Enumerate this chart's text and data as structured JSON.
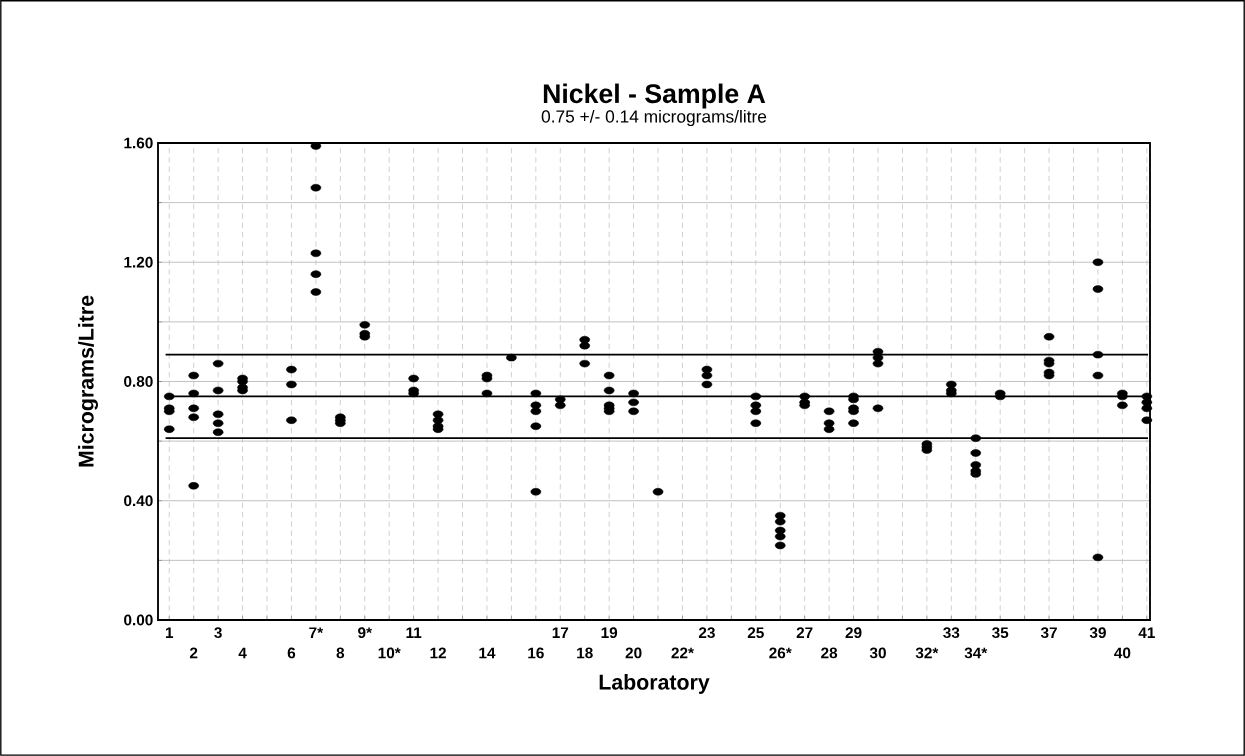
{
  "chart_data": {
    "type": "scatter",
    "title": "Nickel - Sample A",
    "subtitle": "0.75 +/- 0.14 micrograms/litre",
    "xlabel": "Laboratory",
    "ylabel": "Micrograms/Litre",
    "categories": [
      "1",
      "2",
      "3",
      "4",
      null,
      "6",
      "7*",
      "8",
      "9*",
      "10*",
      "11",
      "12",
      null,
      "14",
      null,
      "16",
      "17",
      "18",
      "19",
      "20",
      null,
      "22*",
      "23",
      null,
      "25",
      "26*",
      "27",
      "28",
      "29",
      "30",
      null,
      "32*",
      "33",
      "34*",
      "35",
      null,
      "37",
      null,
      "39",
      "40",
      "41"
    ],
    "series": [
      {
        "color": "#000000",
        "values": [
          0.75,
          0.82,
          0.86,
          0.81,
          null,
          0.84,
          1.59,
          0.68,
          0.99,
          null,
          0.81,
          0.69,
          null,
          0.82,
          0.88,
          0.76,
          0.74,
          0.94,
          0.82,
          0.76,
          0.43,
          null,
          0.84,
          null,
          0.75,
          0.35,
          0.75,
          0.7,
          0.75,
          0.9,
          null,
          0.59,
          0.79,
          0.61,
          0.76,
          null,
          0.95,
          null,
          1.2,
          0.76,
          0.75
        ]
      },
      {
        "color": "#000000",
        "values": [
          0.71,
          0.76,
          0.77,
          0.8,
          null,
          null,
          1.45,
          0.67,
          0.96,
          null,
          0.77,
          0.67,
          null,
          0.81,
          null,
          0.72,
          0.72,
          0.92,
          0.77,
          0.73,
          null,
          null,
          0.82,
          null,
          0.72,
          0.33,
          0.73,
          0.66,
          0.74,
          0.88,
          null,
          0.58,
          0.77,
          0.56,
          0.75,
          null,
          0.87,
          null,
          1.11,
          0.75,
          0.73
        ]
      },
      {
        "color": "#000000",
        "values": [
          0.7,
          0.71,
          0.69,
          0.78,
          null,
          0.79,
          1.23,
          0.66,
          0.95,
          null,
          0.76,
          0.65,
          null,
          null,
          null,
          0.7,
          null,
          null,
          0.72,
          0.7,
          null,
          null,
          0.79,
          null,
          0.7,
          0.3,
          0.72,
          0.64,
          0.71,
          0.86,
          null,
          0.57,
          0.76,
          0.52,
          null,
          null,
          0.86,
          null,
          0.89,
          0.72,
          0.71
        ]
      },
      {
        "color": "#000000",
        "values": [
          0.64,
          0.68,
          0.66,
          0.77,
          null,
          0.67,
          1.16,
          null,
          null,
          null,
          null,
          0.64,
          null,
          0.76,
          null,
          0.65,
          null,
          0.86,
          0.71,
          null,
          null,
          null,
          null,
          null,
          0.66,
          0.28,
          null,
          null,
          0.7,
          0.71,
          null,
          null,
          null,
          0.5,
          null,
          null,
          0.83,
          null,
          0.82,
          null,
          0.67
        ]
      },
      {
        "color": "#000000",
        "values": [
          null,
          0.45,
          0.63,
          null,
          null,
          null,
          1.1,
          null,
          null,
          null,
          null,
          null,
          null,
          null,
          null,
          0.43,
          null,
          null,
          0.7,
          null,
          null,
          null,
          null,
          null,
          null,
          0.25,
          null,
          null,
          0.66,
          null,
          null,
          null,
          null,
          0.49,
          null,
          null,
          0.82,
          null,
          0.21,
          null,
          null
        ]
      }
    ],
    "ylim": [
      0,
      1.6
    ],
    "yticks": [
      {
        "value": 0,
        "label": "0.00"
      },
      {
        "value": 0.2,
        "label": null
      },
      {
        "value": 0.4,
        "label": "0.40"
      },
      {
        "value": 0.6,
        "label": null
      },
      {
        "value": 0.8,
        "label": "0.80"
      },
      {
        "value": 1.0,
        "label": null
      },
      {
        "value": 1.2,
        "label": "1.20"
      },
      {
        "value": 1.4,
        "label": null
      },
      {
        "value": 1.6,
        "label": "1.60"
      }
    ],
    "ref_lines": [
      {
        "axis": "y",
        "value": 0.89
      },
      {
        "axis": "y",
        "value": 0.75
      },
      {
        "axis": "y",
        "value": 0.61
      }
    ],
    "grid": true,
    "marker": "circle"
  }
}
